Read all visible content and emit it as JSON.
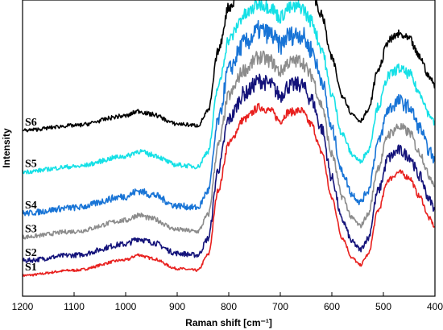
{
  "chart_data": {
    "type": "line",
    "xlabel": "Raman shift [cm⁻¹]",
    "ylabel": "Intensity",
    "xlim": [
      1200,
      400
    ],
    "x_reversed": true,
    "x_ticks": [
      1200,
      1100,
      1000,
      900,
      800,
      700,
      600,
      500,
      400
    ],
    "y_ticks_shown": false,
    "grid": false,
    "profile_x": [
      1200,
      1100,
      1000,
      975,
      950,
      900,
      860,
      840,
      820,
      800,
      770,
      740,
      720,
      700,
      685,
      660,
      640,
      620,
      600,
      580,
      560,
      545,
      530,
      510,
      490,
      470,
      450,
      430,
      410,
      400
    ],
    "profile_shape": [
      0.0,
      0.03,
      0.09,
      0.12,
      0.1,
      0.04,
      0.03,
      0.12,
      0.5,
      0.77,
      0.91,
      0.98,
      0.96,
      0.9,
      0.95,
      0.96,
      0.88,
      0.72,
      0.45,
      0.22,
      0.1,
      0.06,
      0.12,
      0.38,
      0.56,
      0.6,
      0.57,
      0.46,
      0.33,
      0.28
    ],
    "series": [
      {
        "name": "S1",
        "color": "#e8201e",
        "offset": 0.07,
        "scale": 0.58,
        "noise": 0.004
      },
      {
        "name": "S2",
        "color": "#14137a",
        "offset": 0.12,
        "scale": 0.62,
        "noise": 0.008
      },
      {
        "name": "S3",
        "color": "#8c8c8c",
        "offset": 0.2,
        "scale": 0.62,
        "noise": 0.007
      },
      {
        "name": "S4",
        "color": "#1874d6",
        "offset": 0.28,
        "scale": 0.63,
        "noise": 0.01
      },
      {
        "name": "S5",
        "color": "#15e0e6",
        "offset": 0.42,
        "scale": 0.58,
        "noise": 0.007
      },
      {
        "name": "S6",
        "color": "#000000",
        "offset": 0.56,
        "scale": 0.54,
        "noise": 0.006
      }
    ]
  }
}
